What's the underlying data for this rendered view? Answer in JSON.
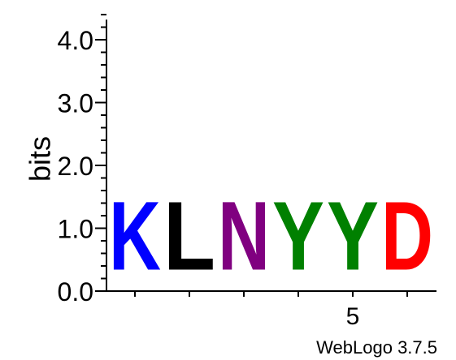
{
  "chart_data": {
    "type": "sequence-logo",
    "ylabel": "bits",
    "ylim": [
      0,
      4.32
    ],
    "y_ticks": [
      {
        "value": 0.0,
        "label": "0.0"
      },
      {
        "value": 1.0,
        "label": "1.0"
      },
      {
        "value": 2.0,
        "label": "2.0"
      },
      {
        "value": 3.0,
        "label": "3.0"
      },
      {
        "value": 4.0,
        "label": "4.0"
      }
    ],
    "y_minor_step": 0.2,
    "x_tick_labels": [
      {
        "position": 5,
        "label": "5"
      }
    ],
    "positions": [
      {
        "position": 1,
        "letters": [
          {
            "letter": "K",
            "bits": 1.75,
            "color": "#0000ff"
          }
        ]
      },
      {
        "position": 2,
        "letters": [
          {
            "letter": "L",
            "bits": 1.75,
            "color": "#000000"
          }
        ]
      },
      {
        "position": 3,
        "letters": [
          {
            "letter": "N",
            "bits": 1.75,
            "color": "#800080"
          }
        ]
      },
      {
        "position": 4,
        "letters": [
          {
            "letter": "Y",
            "bits": 1.75,
            "color": "#008000"
          }
        ]
      },
      {
        "position": 5,
        "letters": [
          {
            "letter": "Y",
            "bits": 1.75,
            "color": "#008000"
          }
        ]
      },
      {
        "position": 6,
        "letters": [
          {
            "letter": "D",
            "bits": 1.75,
            "color": "#ff0000"
          }
        ]
      }
    ],
    "footer": "WebLogo 3.7.5"
  }
}
